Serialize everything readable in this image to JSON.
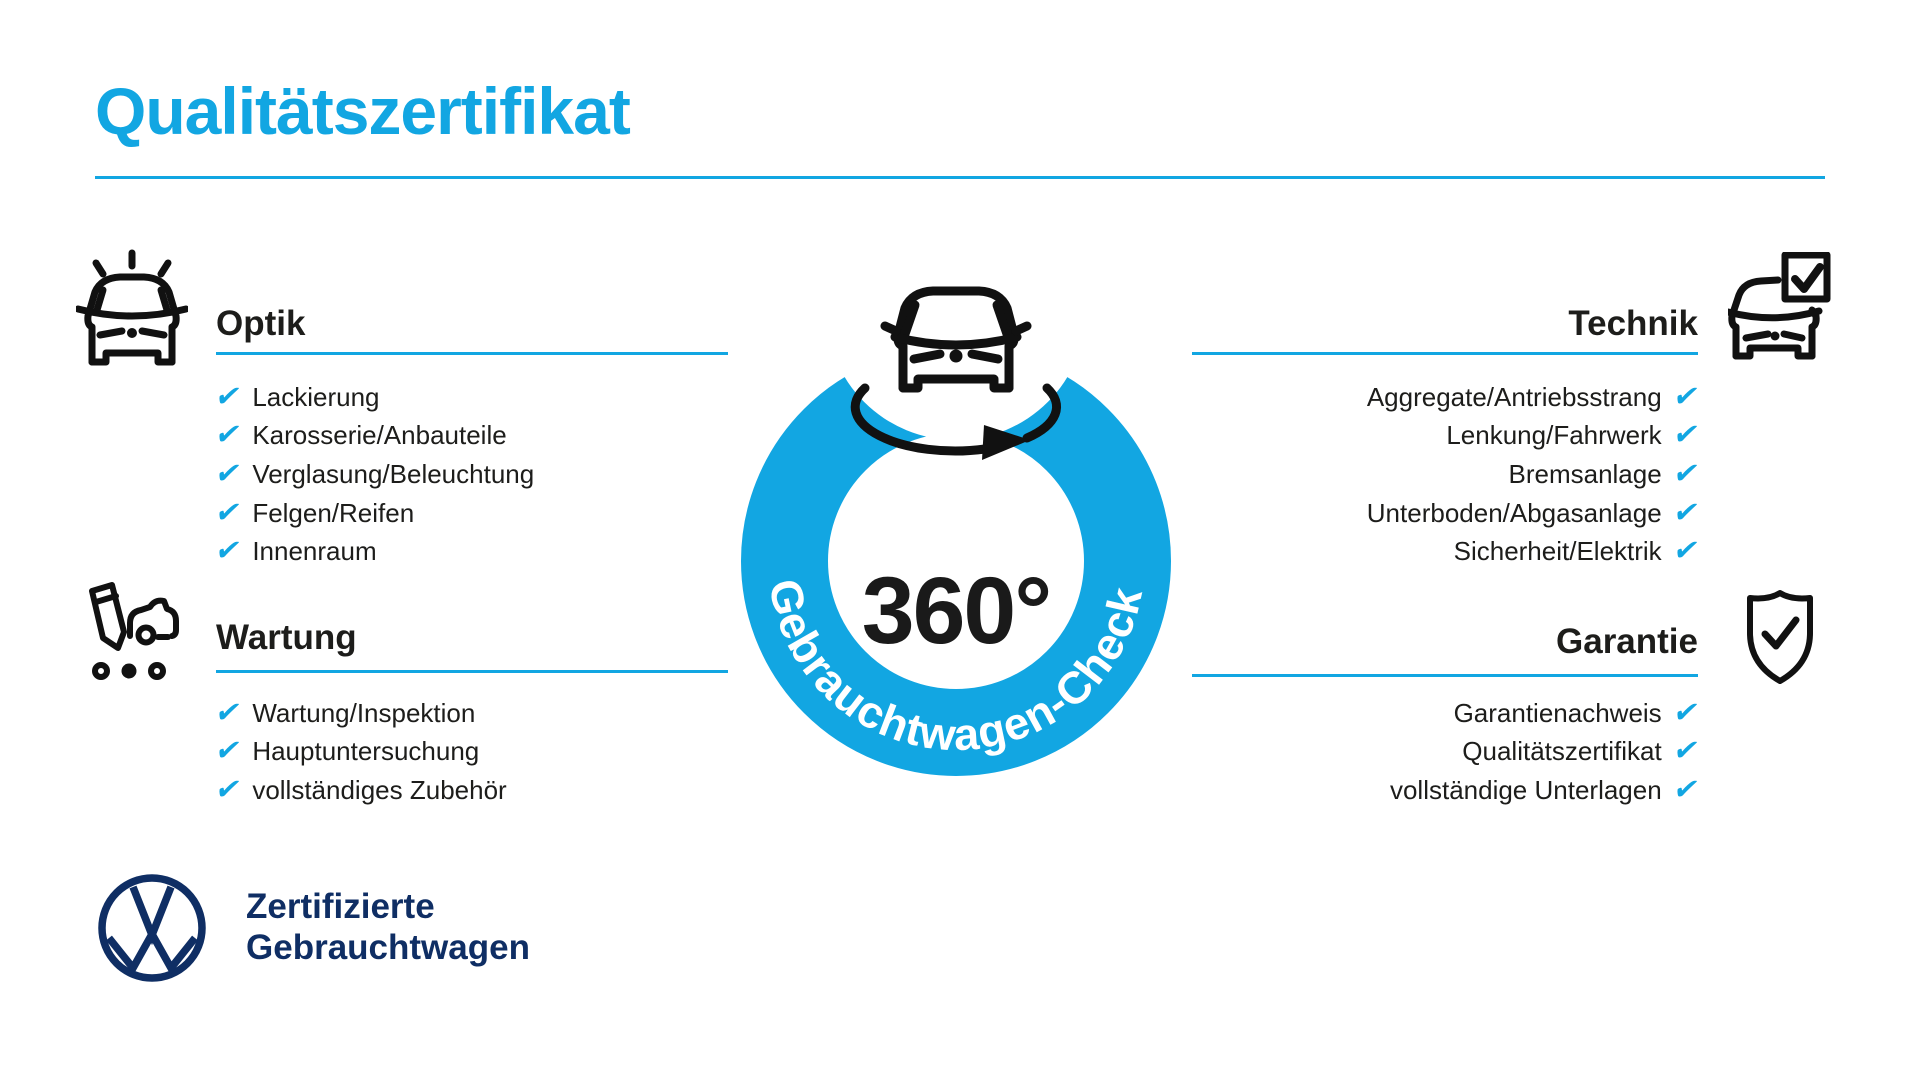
{
  "colors": {
    "accent_blue": "#12a6e2",
    "navy_blue": "#0f2e64",
    "text_black": "#1d1d1b"
  },
  "checkmark": "✔",
  "title": "Qualitätszertifikat",
  "center": {
    "degree_label": "360°",
    "ring_label": "Gebrauchtwagen-Check",
    "car_icon": "car-front-icon",
    "rotation_icon": "rotation-arrow-icon"
  },
  "sections": [
    {
      "id": "optik",
      "title": "Optik",
      "icon": "shiny-car-icon",
      "items": [
        "Lackierung",
        "Karosserie/Anbauteile",
        "Verglasung/Beleuchtung",
        "Felgen/Reifen",
        "Innenraum"
      ]
    },
    {
      "id": "wartung",
      "title": "Wartung",
      "icon": "service-record-icon",
      "items": [
        "Wartung/Inspektion",
        "Hauptuntersuchung",
        "vollständiges Zubehör"
      ]
    },
    {
      "id": "technik",
      "title": "Technik",
      "icon": "car-checklist-icon",
      "items": [
        "Aggregate/Antriebsstrang",
        "Lenkung/Fahrwerk",
        "Bremsanlage",
        "Unterboden/Abgasanlage",
        "Sicherheit/Elektrik"
      ]
    },
    {
      "id": "garantie",
      "title": "Garantie",
      "icon": "shield-check-icon",
      "items": [
        "Garantienachweis",
        "Qualitätszertifikat",
        "vollständige Unterlagen"
      ]
    }
  ],
  "brand": {
    "logo": "vw-logo",
    "line1": "Zertifizierte",
    "line2": "Gebrauchtwagen"
  }
}
